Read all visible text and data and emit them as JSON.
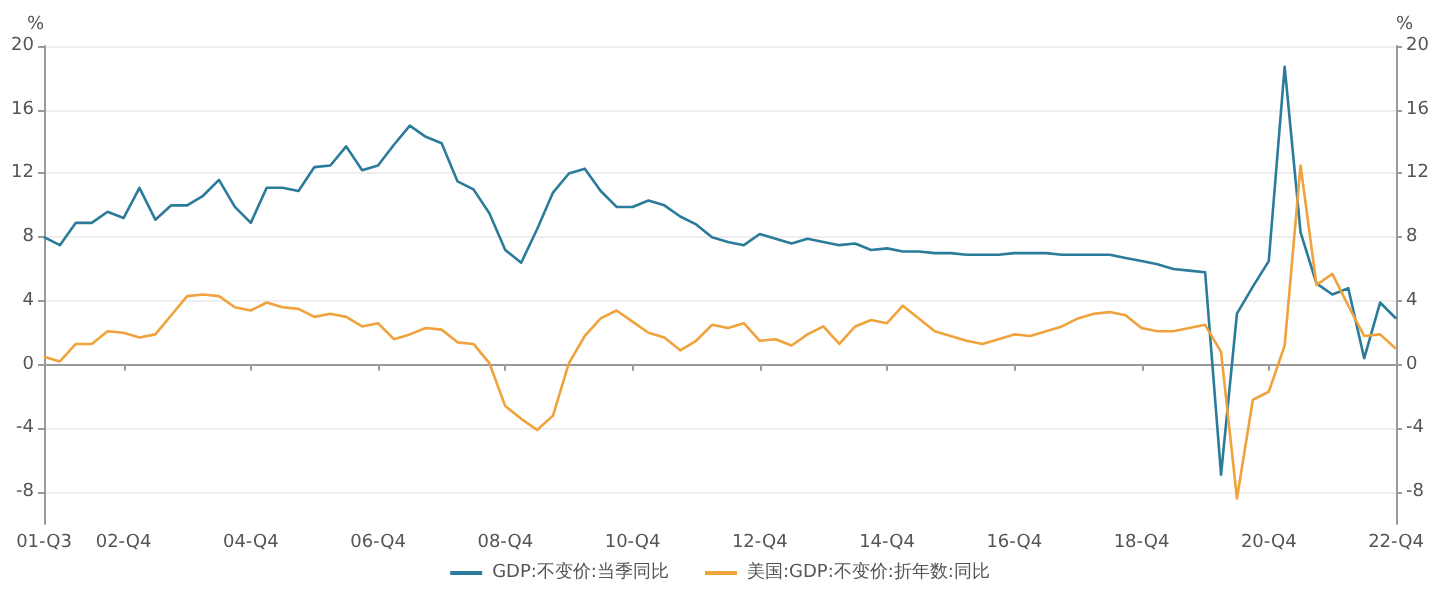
{
  "chart_data": {
    "type": "line",
    "ylabel": "%",
    "y2label": "%",
    "categories": [
      "01-Q3",
      null,
      null,
      null,
      null,
      "02-Q4",
      null,
      null,
      null,
      null,
      null,
      null,
      null,
      "04-Q4",
      null,
      null,
      null,
      null,
      null,
      null,
      null,
      "06-Q4",
      null,
      null,
      null,
      null,
      null,
      null,
      null,
      "08-Q4",
      null,
      null,
      null,
      null,
      null,
      null,
      null,
      "10-Q4",
      null,
      null,
      null,
      null,
      null,
      null,
      null,
      "12-Q4",
      null,
      null,
      null,
      null,
      null,
      null,
      null,
      "14-Q4",
      null,
      null,
      null,
      null,
      null,
      null,
      null,
      "16-Q4",
      null,
      null,
      null,
      null,
      null,
      null,
      null,
      "18-Q4",
      null,
      null,
      null,
      null,
      null,
      null,
      null,
      "20-Q4",
      null,
      null,
      null,
      null,
      null,
      null,
      null,
      "22-Q4"
    ],
    "series": [
      {
        "name": "GDP:不变价:当季同比",
        "color": "#2b7b9a",
        "values": [
          8.0,
          7.5,
          8.9,
          8.9,
          9.6,
          9.2,
          11.1,
          9.1,
          10.0,
          10.0,
          10.6,
          11.6,
          9.9,
          8.9,
          11.1,
          11.1,
          10.9,
          12.4,
          12.5,
          13.7,
          12.2,
          12.5,
          13.8,
          15.0,
          14.3,
          13.9,
          11.5,
          11.0,
          9.5,
          7.2,
          6.4,
          8.5,
          10.8,
          12.0,
          12.3,
          10.9,
          9.9,
          9.9,
          10.3,
          10.0,
          9.3,
          8.8,
          8.0,
          7.7,
          7.5,
          8.2,
          7.9,
          7.6,
          7.9,
          7.7,
          7.5,
          7.6,
          7.2,
          7.3,
          7.1,
          7.1,
          7.0,
          7.0,
          6.9,
          6.9,
          6.9,
          7.0,
          7.0,
          7.0,
          6.9,
          6.9,
          6.9,
          6.9,
          6.7,
          6.5,
          6.3,
          6.0,
          5.9,
          5.8,
          -6.9,
          3.2,
          4.9,
          6.5,
          18.7,
          8.3,
          5.1,
          4.4,
          4.8,
          0.4,
          3.9,
          2.9
        ]
      },
      {
        "name": "美国:GDP:不变价:折年数:同比",
        "color": "#f0a23c",
        "values": [
          0.5,
          0.2,
          1.3,
          1.3,
          2.1,
          2.0,
          1.7,
          1.9,
          3.1,
          4.3,
          4.4,
          4.3,
          3.6,
          3.4,
          3.9,
          3.6,
          3.5,
          3.0,
          3.2,
          3.0,
          2.4,
          2.6,
          1.6,
          1.9,
          2.3,
          2.2,
          1.4,
          1.3,
          0.1,
          -2.6,
          -3.4,
          -4.1,
          -3.2,
          0.1,
          1.8,
          2.9,
          3.4,
          2.7,
          2.0,
          1.7,
          0.9,
          1.5,
          2.5,
          2.3,
          2.6,
          1.5,
          1.6,
          1.2,
          1.9,
          2.4,
          1.3,
          2.4,
          2.8,
          2.6,
          3.7,
          2.9,
          2.1,
          1.8,
          1.5,
          1.3,
          1.6,
          1.9,
          1.8,
          2.1,
          2.4,
          2.9,
          3.2,
          3.3,
          3.1,
          2.3,
          2.1,
          2.1,
          2.3,
          2.5,
          0.8,
          -8.4,
          -2.2,
          -1.7,
          1.2,
          12.5,
          5.0,
          5.7,
          3.7,
          1.8,
          1.9,
          1.0
        ]
      }
    ],
    "ylim": [
      -10,
      20
    ],
    "yticks": [
      -8,
      -4,
      0,
      4,
      8,
      12,
      16,
      20
    ],
    "y2lim": [
      -10,
      20
    ],
    "y2ticks": [
      -8,
      -4,
      0,
      4,
      8,
      12,
      16,
      20
    ],
    "grid": "y",
    "legend": "bottom",
    "marker": "none",
    "line_style": "solid"
  }
}
